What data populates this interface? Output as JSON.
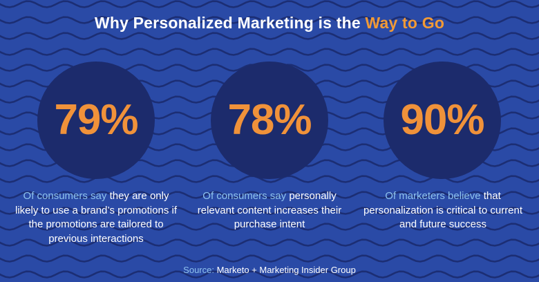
{
  "title": {
    "prefix": "Why Personalized Marketing is the ",
    "highlight": "Way to Go"
  },
  "stats": [
    {
      "value": "79%",
      "caption_lead": "Of consumers say",
      "caption_rest": " they are only likely to use a brand’s promotions if the promotions are tailored to previous interactions"
    },
    {
      "value": "78%",
      "caption_lead": "Of consumers say",
      "caption_rest": " personally relevant content increases their purchase intent"
    },
    {
      "value": "90%",
      "caption_lead": "Of marketers believe",
      "caption_rest": " that personalization is critical to current and future success"
    }
  ],
  "source": {
    "label": "Source:",
    "text": " Marketo + Marketing Insider Group"
  },
  "colors": {
    "background": "#2a4aa6",
    "wave_line": "#1c2e74",
    "circle": "#1c2b6c",
    "accent_orange": "#f0923a",
    "caption_lead_blue": "#8fc3ee",
    "text": "#ffffff"
  }
}
